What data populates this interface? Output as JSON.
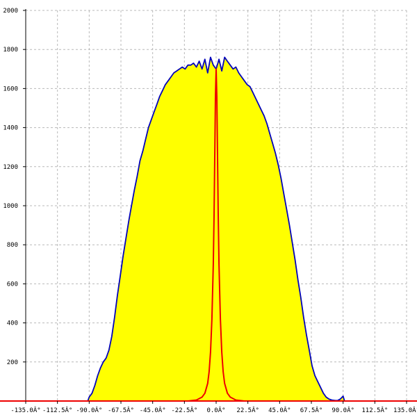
{
  "chart_data": {
    "type": "area",
    "title": "",
    "xlabel": "",
    "ylabel": "",
    "xlim": [
      -135,
      135
    ],
    "ylim": [
      0,
      2000
    ],
    "grid": true,
    "x_ticks": [
      {
        "value": -135,
        "label": "-135.0Â°"
      },
      {
        "value": -112.5,
        "label": "-112.5Â°"
      },
      {
        "value": -90,
        "label": "-90.0Â°"
      },
      {
        "value": -67.5,
        "label": "-67.5Â°"
      },
      {
        "value": -45,
        "label": "-45.0Â°"
      },
      {
        "value": -22.5,
        "label": "-22.5Â°"
      },
      {
        "value": 0,
        "label": "0.0Â°"
      },
      {
        "value": 22.5,
        "label": "22.5Â°"
      },
      {
        "value": 45,
        "label": "45.0Â°"
      },
      {
        "value": 67.5,
        "label": "67.5Â°"
      },
      {
        "value": 90,
        "label": "90.0Â°"
      },
      {
        "value": 112.5,
        "label": "112.5Â°"
      },
      {
        "value": 135,
        "label": "135.0Â°"
      }
    ],
    "y_ticks": [
      {
        "value": 200,
        "label": "200"
      },
      {
        "value": 400,
        "label": "400"
      },
      {
        "value": 600,
        "label": "600"
      },
      {
        "value": 800,
        "label": "800"
      },
      {
        "value": 1000,
        "label": "1000"
      },
      {
        "value": 1200,
        "label": "1200"
      },
      {
        "value": 1400,
        "label": "1400"
      },
      {
        "value": 1600,
        "label": "1600"
      },
      {
        "value": 1800,
        "label": "1800"
      },
      {
        "value": 2000,
        "label": "2000"
      }
    ],
    "series": [
      {
        "color": "#0000bb",
        "fill": "#ffff00",
        "x": [
          -135,
          -91,
          -90,
          -88,
          -86,
          -84,
          -82,
          -80,
          -78,
          -76,
          -74,
          -72,
          -70,
          -68,
          -66,
          -64,
          -62,
          -60,
          -58,
          -56,
          -54,
          -52,
          -50,
          -48,
          -46,
          -44,
          -42,
          -40,
          -38,
          -36,
          -34,
          -32,
          -30,
          -28,
          -26,
          -24,
          -22,
          -20,
          -18,
          -16,
          -14,
          -12,
          -10,
          -8,
          -6,
          -4,
          -2,
          0,
          2,
          4,
          6,
          8,
          10,
          12,
          14,
          16,
          18,
          20,
          22,
          24,
          26,
          28,
          30,
          32,
          34,
          36,
          38,
          40,
          42,
          44,
          46,
          48,
          50,
          52,
          54,
          56,
          58,
          60,
          62,
          64,
          66,
          68,
          70,
          72,
          74,
          76,
          78,
          80,
          82,
          84,
          86,
          88,
          90,
          91,
          135
        ],
        "y": [
          0,
          0,
          20,
          40,
          80,
          130,
          170,
          200,
          220,
          260,
          330,
          430,
          540,
          640,
          740,
          830,
          920,
          1000,
          1080,
          1150,
          1230,
          1280,
          1340,
          1400,
          1440,
          1480,
          1520,
          1560,
          1590,
          1620,
          1640,
          1660,
          1680,
          1690,
          1700,
          1710,
          1700,
          1720,
          1720,
          1730,
          1710,
          1740,
          1700,
          1750,
          1680,
          1760,
          1720,
          1700,
          1750,
          1690,
          1760,
          1740,
          1720,
          1700,
          1710,
          1680,
          1660,
          1640,
          1620,
          1610,
          1580,
          1550,
          1520,
          1490,
          1460,
          1420,
          1370,
          1320,
          1270,
          1210,
          1140,
          1060,
          980,
          900,
          810,
          720,
          620,
          530,
          430,
          340,
          260,
          180,
          130,
          100,
          70,
          40,
          20,
          10,
          5,
          3,
          2,
          10,
          25,
          0,
          0
        ]
      },
      {
        "color": "#ee0000",
        "x": [
          -135,
          -20,
          -14,
          -10,
          -8,
          -6,
          -5,
          -4,
          -3,
          -2,
          -1.5,
          -1,
          -0.5,
          0,
          0.5,
          1,
          1.5,
          2,
          3,
          4,
          5,
          6,
          8,
          10,
          14,
          20,
          135
        ],
        "y": [
          0,
          0,
          5,
          20,
          40,
          90,
          150,
          250,
          420,
          700,
          950,
          1250,
          1560,
          1700,
          1560,
          1250,
          950,
          700,
          420,
          250,
          150,
          90,
          40,
          20,
          5,
          0,
          0
        ]
      }
    ]
  }
}
